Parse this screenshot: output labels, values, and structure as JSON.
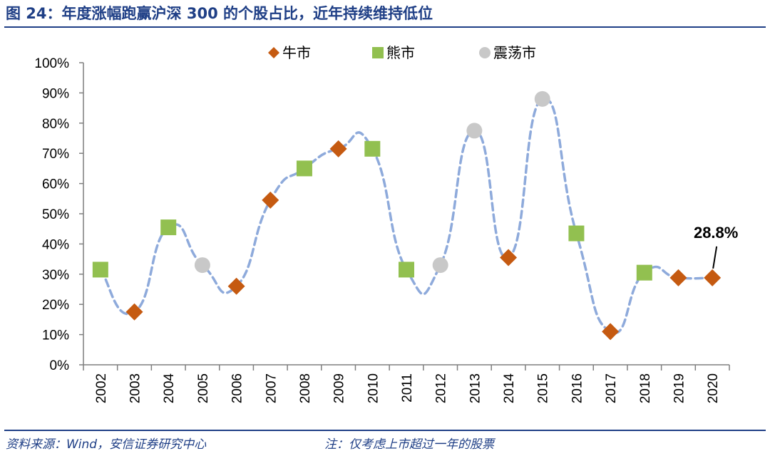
{
  "title": "图 24：年度涨幅跑赢沪深 300 的个股占比，近年持续维持低位",
  "footer": {
    "source": "资料来源：Wind，安信证券研究中心",
    "note": "注：仅考虑上市超过一年的股票"
  },
  "colors": {
    "title": "#1f3f86",
    "line": "#8eaadb",
    "bull": "#c55a11",
    "bear": "#92c050",
    "range": "#c8c8c8"
  },
  "chart_data": {
    "type": "line",
    "title": "",
    "xlabel": "",
    "ylabel": "",
    "ylim": [
      0,
      100
    ],
    "y_ticks": [
      "0%",
      "10%",
      "20%",
      "30%",
      "40%",
      "50%",
      "60%",
      "70%",
      "80%",
      "90%",
      "100%"
    ],
    "x": [
      "2002",
      "2003",
      "2004",
      "2005",
      "2006",
      "2007",
      "2008",
      "2009",
      "2010",
      "2011",
      "2012",
      "2013",
      "2014",
      "2015",
      "2016",
      "2017",
      "2018",
      "2019",
      "2020"
    ],
    "values": [
      31.5,
      17.5,
      45.5,
      33,
      26,
      54.5,
      65,
      71.5,
      71.5,
      31.5,
      33,
      77.5,
      35.5,
      88,
      43.5,
      11,
      30.5,
      28.8,
      28.8
    ],
    "market": [
      "bear",
      "bull",
      "bear",
      "range",
      "bull",
      "bull",
      "bear",
      "bull",
      "bear",
      "bear",
      "range",
      "range",
      "bull",
      "range",
      "bear",
      "bull",
      "bear",
      "bull",
      "bull"
    ],
    "legend": [
      {
        "key": "bull",
        "label": "牛市",
        "shape": "diamond"
      },
      {
        "key": "bear",
        "label": "熊市",
        "shape": "square"
      },
      {
        "key": "range",
        "label": "震荡市",
        "shape": "circle"
      }
    ],
    "legend_position": "top-center",
    "annotation": {
      "text": "28.8%",
      "index": 18
    }
  }
}
